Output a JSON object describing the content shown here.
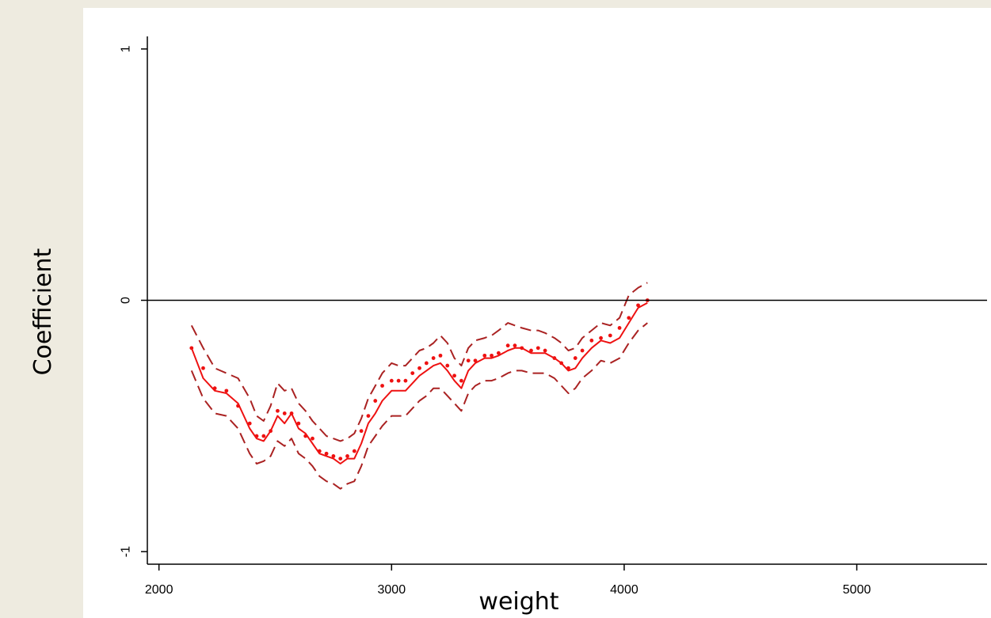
{
  "chart_data": {
    "type": "line",
    "title": "",
    "xlabel": "weight",
    "ylabel": "Coefficient",
    "xlim": [
      1950,
      5560
    ],
    "ylim": [
      -1.05,
      1.05
    ],
    "xticks": [
      2000,
      3000,
      4000,
      5000
    ],
    "yticks": [
      -1,
      0,
      1
    ],
    "x_tick_labels": [
      "2000",
      "3000",
      "4000",
      "5000"
    ],
    "y_tick_labels": [
      "-1",
      "0",
      "1"
    ],
    "reference_line_y": 0,
    "grid": false,
    "legend": "none",
    "colors": {
      "background": "#eeebe0",
      "plot_background": "#ffffff",
      "estimate": "#ee1111",
      "confidence_band": "#aa2222",
      "axis": "#000000",
      "reference_line": "#000000"
    },
    "x": [
      2140,
      2190,
      2240,
      2290,
      2340,
      2390,
      2420,
      2450,
      2480,
      2510,
      2540,
      2570,
      2600,
      2630,
      2660,
      2690,
      2720,
      2750,
      2780,
      2810,
      2840,
      2870,
      2900,
      2930,
      2960,
      3000,
      3030,
      3060,
      3090,
      3120,
      3150,
      3180,
      3210,
      3240,
      3270,
      3300,
      3330,
      3360,
      3400,
      3430,
      3460,
      3500,
      3530,
      3560,
      3600,
      3630,
      3660,
      3700,
      3730,
      3760,
      3790,
      3820,
      3860,
      3900,
      3940,
      3980,
      4020,
      4060,
      4100
    ],
    "series": [
      {
        "style": "solid",
        "values": [
          -0.19,
          -0.31,
          -0.36,
          -0.37,
          -0.41,
          -0.51,
          -0.55,
          -0.56,
          -0.52,
          -0.46,
          -0.49,
          -0.45,
          -0.51,
          -0.53,
          -0.57,
          -0.61,
          -0.62,
          -0.63,
          -0.65,
          -0.63,
          -0.63,
          -0.57,
          -0.49,
          -0.45,
          -0.4,
          -0.36,
          -0.36,
          -0.36,
          -0.33,
          -0.3,
          -0.28,
          -0.26,
          -0.25,
          -0.28,
          -0.32,
          -0.35,
          -0.28,
          -0.25,
          -0.23,
          -0.23,
          -0.22,
          -0.2,
          -0.19,
          -0.19,
          -0.21,
          -0.21,
          -0.21,
          -0.23,
          -0.25,
          -0.28,
          -0.27,
          -0.23,
          -0.19,
          -0.16,
          -0.17,
          -0.15,
          -0.09,
          -0.03,
          -0.01
        ]
      },
      {
        "style": "dotted",
        "values": [
          -0.19,
          -0.27,
          -0.35,
          -0.36,
          -0.42,
          -0.49,
          -0.54,
          -0.54,
          -0.52,
          -0.44,
          -0.45,
          -0.45,
          -0.49,
          -0.54,
          -0.55,
          -0.6,
          -0.61,
          -0.62,
          -0.63,
          -0.62,
          -0.6,
          -0.52,
          -0.46,
          -0.4,
          -0.34,
          -0.32,
          -0.32,
          -0.32,
          -0.29,
          -0.27,
          -0.25,
          -0.23,
          -0.22,
          -0.26,
          -0.3,
          -0.32,
          -0.24,
          -0.24,
          -0.22,
          -0.22,
          -0.21,
          -0.18,
          -0.18,
          -0.19,
          -0.2,
          -0.19,
          -0.2,
          -0.23,
          -0.25,
          -0.27,
          -0.23,
          -0.2,
          -0.16,
          -0.15,
          -0.14,
          -0.11,
          -0.07,
          -0.02,
          0.0
        ]
      },
      {
        "style": "dashed",
        "values": [
          -0.1,
          -0.19,
          -0.27,
          -0.29,
          -0.31,
          -0.39,
          -0.46,
          -0.48,
          -0.42,
          -0.33,
          -0.36,
          -0.35,
          -0.41,
          -0.44,
          -0.48,
          -0.51,
          -0.54,
          -0.55,
          -0.56,
          -0.55,
          -0.53,
          -0.47,
          -0.39,
          -0.34,
          -0.29,
          -0.25,
          -0.26,
          -0.26,
          -0.23,
          -0.2,
          -0.19,
          -0.17,
          -0.14,
          -0.17,
          -0.23,
          -0.26,
          -0.19,
          -0.16,
          -0.15,
          -0.14,
          -0.12,
          -0.09,
          -0.1,
          -0.11,
          -0.12,
          -0.12,
          -0.13,
          -0.15,
          -0.17,
          -0.2,
          -0.19,
          -0.15,
          -0.12,
          -0.09,
          -0.1,
          -0.07,
          0.02,
          0.05,
          0.07
        ]
      },
      {
        "style": "dashed",
        "values": [
          -0.28,
          -0.39,
          -0.45,
          -0.46,
          -0.51,
          -0.61,
          -0.65,
          -0.64,
          -0.62,
          -0.56,
          -0.58,
          -0.55,
          -0.61,
          -0.63,
          -0.66,
          -0.7,
          -0.72,
          -0.73,
          -0.75,
          -0.73,
          -0.72,
          -0.66,
          -0.58,
          -0.54,
          -0.5,
          -0.46,
          -0.46,
          -0.46,
          -0.43,
          -0.4,
          -0.38,
          -0.35,
          -0.35,
          -0.38,
          -0.41,
          -0.44,
          -0.37,
          -0.34,
          -0.32,
          -0.32,
          -0.31,
          -0.29,
          -0.28,
          -0.28,
          -0.29,
          -0.29,
          -0.29,
          -0.31,
          -0.34,
          -0.37,
          -0.35,
          -0.31,
          -0.28,
          -0.24,
          -0.25,
          -0.23,
          -0.17,
          -0.12,
          -0.09
        ]
      }
    ]
  }
}
